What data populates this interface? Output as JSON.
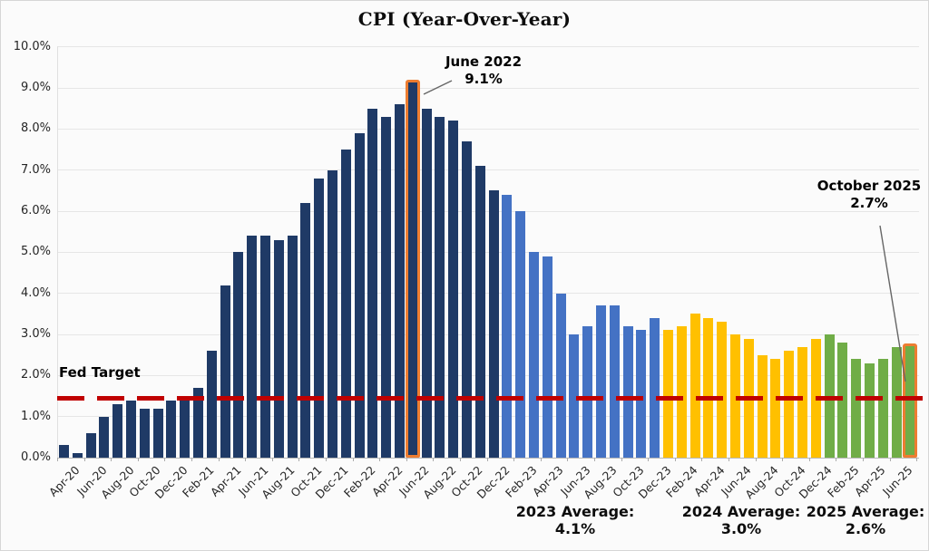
{
  "title": "CPI (Year-Over-Year)",
  "colors": {
    "navy": "#1F3A66",
    "blue": "#4472C4",
    "gold": "#FFC000",
    "green": "#70AD47",
    "highlight_outline": "#ED7D31",
    "fed_target_line": "#C00000",
    "callout_line": "#666666"
  },
  "annotations": {
    "june_2022": {
      "line1": "June 2022",
      "line2": "9.1%"
    },
    "october_2025": {
      "line1": "October 2025",
      "line2": "2.7%"
    },
    "fed_target": {
      "label": "Fed Target"
    },
    "averages": [
      {
        "label": "2023 Average:",
        "value": "4.1%"
      },
      {
        "label": "2024 Average:",
        "value": "3.0%"
      },
      {
        "label": "2025 Average:",
        "value": "2.6%"
      }
    ]
  },
  "chart_data": {
    "type": "bar",
    "title": "CPI (Year-Over-Year)",
    "xlabel": "",
    "ylabel": "",
    "ylim": [
      0,
      10
    ],
    "grid": "horizontal",
    "legend": "none",
    "y_axis": {
      "tick_labels": [
        "0.0%",
        "1.0%",
        "2.0%",
        "3.0%",
        "4.0%",
        "5.0%",
        "6.0%",
        "7.0%",
        "8.0%",
        "9.0%",
        "10.0%"
      ]
    },
    "fed_target_value": 1.45,
    "bars": [
      {
        "month": "Apr-20",
        "value": 0.3,
        "group": "navy",
        "tick": "Apr-20"
      },
      {
        "month": "May-20",
        "value": 0.1,
        "group": "navy",
        "tick": null
      },
      {
        "month": "Jun-20",
        "value": 0.6,
        "group": "navy",
        "tick": "Jun-20"
      },
      {
        "month": "Jul-20",
        "value": 1.0,
        "group": "navy",
        "tick": null
      },
      {
        "month": "Aug-20",
        "value": 1.3,
        "group": "navy",
        "tick": "Aug-20"
      },
      {
        "month": "Sep-20",
        "value": 1.4,
        "group": "navy",
        "tick": null
      },
      {
        "month": "Oct-20",
        "value": 1.2,
        "group": "navy",
        "tick": "Oct-20"
      },
      {
        "month": "Nov-20",
        "value": 1.2,
        "group": "navy",
        "tick": null
      },
      {
        "month": "Dec-20",
        "value": 1.4,
        "group": "navy",
        "tick": "Dec-20"
      },
      {
        "month": "Jan-21",
        "value": 1.4,
        "group": "navy",
        "tick": null
      },
      {
        "month": "Feb-21",
        "value": 1.7,
        "group": "navy",
        "tick": "Feb-21"
      },
      {
        "month": "Mar-21",
        "value": 2.6,
        "group": "navy",
        "tick": null
      },
      {
        "month": "Apr-21",
        "value": 4.2,
        "group": "navy",
        "tick": "Apr-21"
      },
      {
        "month": "May-21",
        "value": 5.0,
        "group": "navy",
        "tick": null
      },
      {
        "month": "Jun-21",
        "value": 5.4,
        "group": "navy",
        "tick": "Jun-21"
      },
      {
        "month": "Jul-21",
        "value": 5.4,
        "group": "navy",
        "tick": null
      },
      {
        "month": "Aug-21",
        "value": 5.3,
        "group": "navy",
        "tick": "Aug-21"
      },
      {
        "month": "Sep-21",
        "value": 5.4,
        "group": "navy",
        "tick": null
      },
      {
        "month": "Oct-21",
        "value": 6.2,
        "group": "navy",
        "tick": "Oct-21"
      },
      {
        "month": "Nov-21",
        "value": 6.8,
        "group": "navy",
        "tick": null
      },
      {
        "month": "Dec-21",
        "value": 7.0,
        "group": "navy",
        "tick": "Dec-21"
      },
      {
        "month": "Jan-22",
        "value": 7.5,
        "group": "navy",
        "tick": null
      },
      {
        "month": "Feb-22",
        "value": 7.9,
        "group": "navy",
        "tick": "Feb-22"
      },
      {
        "month": "Mar-22",
        "value": 8.5,
        "group": "navy",
        "tick": null
      },
      {
        "month": "Apr-22",
        "value": 8.3,
        "group": "navy",
        "tick": "Apr-22"
      },
      {
        "month": "May-22",
        "value": 8.6,
        "group": "navy",
        "tick": null
      },
      {
        "month": "Jun-22",
        "value": 9.1,
        "group": "navy",
        "tick": "Jun-22",
        "highlight": true
      },
      {
        "month": "Jul-22",
        "value": 8.5,
        "group": "navy",
        "tick": null
      },
      {
        "month": "Aug-22",
        "value": 8.3,
        "group": "navy",
        "tick": "Aug-22"
      },
      {
        "month": "Sep-22",
        "value": 8.2,
        "group": "navy",
        "tick": null
      },
      {
        "month": "Oct-22",
        "value": 7.7,
        "group": "navy",
        "tick": "Oct-22"
      },
      {
        "month": "Nov-22",
        "value": 7.1,
        "group": "navy",
        "tick": null
      },
      {
        "month": "Dec-22",
        "value": 6.5,
        "group": "navy",
        "tick": "Dec-22"
      },
      {
        "month": "Jan-23",
        "value": 6.4,
        "group": "blue",
        "tick": null
      },
      {
        "month": "Feb-23",
        "value": 6.0,
        "group": "blue",
        "tick": "Feb-23"
      },
      {
        "month": "Mar-23",
        "value": 5.0,
        "group": "blue",
        "tick": null
      },
      {
        "month": "Apr-23",
        "value": 4.9,
        "group": "blue",
        "tick": "Apr-23"
      },
      {
        "month": "May-23",
        "value": 4.0,
        "group": "blue",
        "tick": null
      },
      {
        "month": "Jun-23",
        "value": 3.0,
        "group": "blue",
        "tick": "Jun-23"
      },
      {
        "month": "Jul-23",
        "value": 3.2,
        "group": "blue",
        "tick": null
      },
      {
        "month": "Aug-23",
        "value": 3.7,
        "group": "blue",
        "tick": "Aug-23"
      },
      {
        "month": "Sep-23",
        "value": 3.7,
        "group": "blue",
        "tick": null
      },
      {
        "month": "Oct-23",
        "value": 3.2,
        "group": "blue",
        "tick": "Oct-23"
      },
      {
        "month": "Nov-23",
        "value": 3.1,
        "group": "blue",
        "tick": null
      },
      {
        "month": "Dec-23",
        "value": 3.4,
        "group": "blue",
        "tick": "Dec-23"
      },
      {
        "month": "Jan-24",
        "value": 3.1,
        "group": "gold",
        "tick": null
      },
      {
        "month": "Feb-24",
        "value": 3.2,
        "group": "gold",
        "tick": "Feb-24"
      },
      {
        "month": "Mar-24",
        "value": 3.5,
        "group": "gold",
        "tick": null
      },
      {
        "month": "Apr-24",
        "value": 3.4,
        "group": "gold",
        "tick": "Apr-24"
      },
      {
        "month": "May-24",
        "value": 3.3,
        "group": "gold",
        "tick": null
      },
      {
        "month": "Jun-24",
        "value": 3.0,
        "group": "gold",
        "tick": "Jun-24"
      },
      {
        "month": "Jul-24",
        "value": 2.9,
        "group": "gold",
        "tick": null
      },
      {
        "month": "Aug-24",
        "value": 2.5,
        "group": "gold",
        "tick": "Aug-24"
      },
      {
        "month": "Sep-24",
        "value": 2.4,
        "group": "gold",
        "tick": null
      },
      {
        "month": "Oct-24",
        "value": 2.6,
        "group": "gold",
        "tick": "Oct-24"
      },
      {
        "month": "Nov-24",
        "value": 2.7,
        "group": "gold",
        "tick": null
      },
      {
        "month": "Dec-24",
        "value": 2.9,
        "group": "gold",
        "tick": "Dec-24"
      },
      {
        "month": "Jan-25",
        "value": 3.0,
        "group": "green",
        "tick": null
      },
      {
        "month": "Feb-25",
        "value": 2.8,
        "group": "green",
        "tick": "Feb-25"
      },
      {
        "month": "Mar-25",
        "value": 2.4,
        "group": "green",
        "tick": null
      },
      {
        "month": "Apr-25",
        "value": 2.3,
        "group": "green",
        "tick": "Apr-25"
      },
      {
        "month": "May-25",
        "value": 2.4,
        "group": "green",
        "tick": null
      },
      {
        "month": "Jun-25",
        "value": 2.7,
        "group": "green",
        "tick": "Jun-25"
      },
      {
        "month": "Oct-25",
        "value": 2.7,
        "group": "green",
        "tick": null,
        "highlight": true
      }
    ]
  }
}
